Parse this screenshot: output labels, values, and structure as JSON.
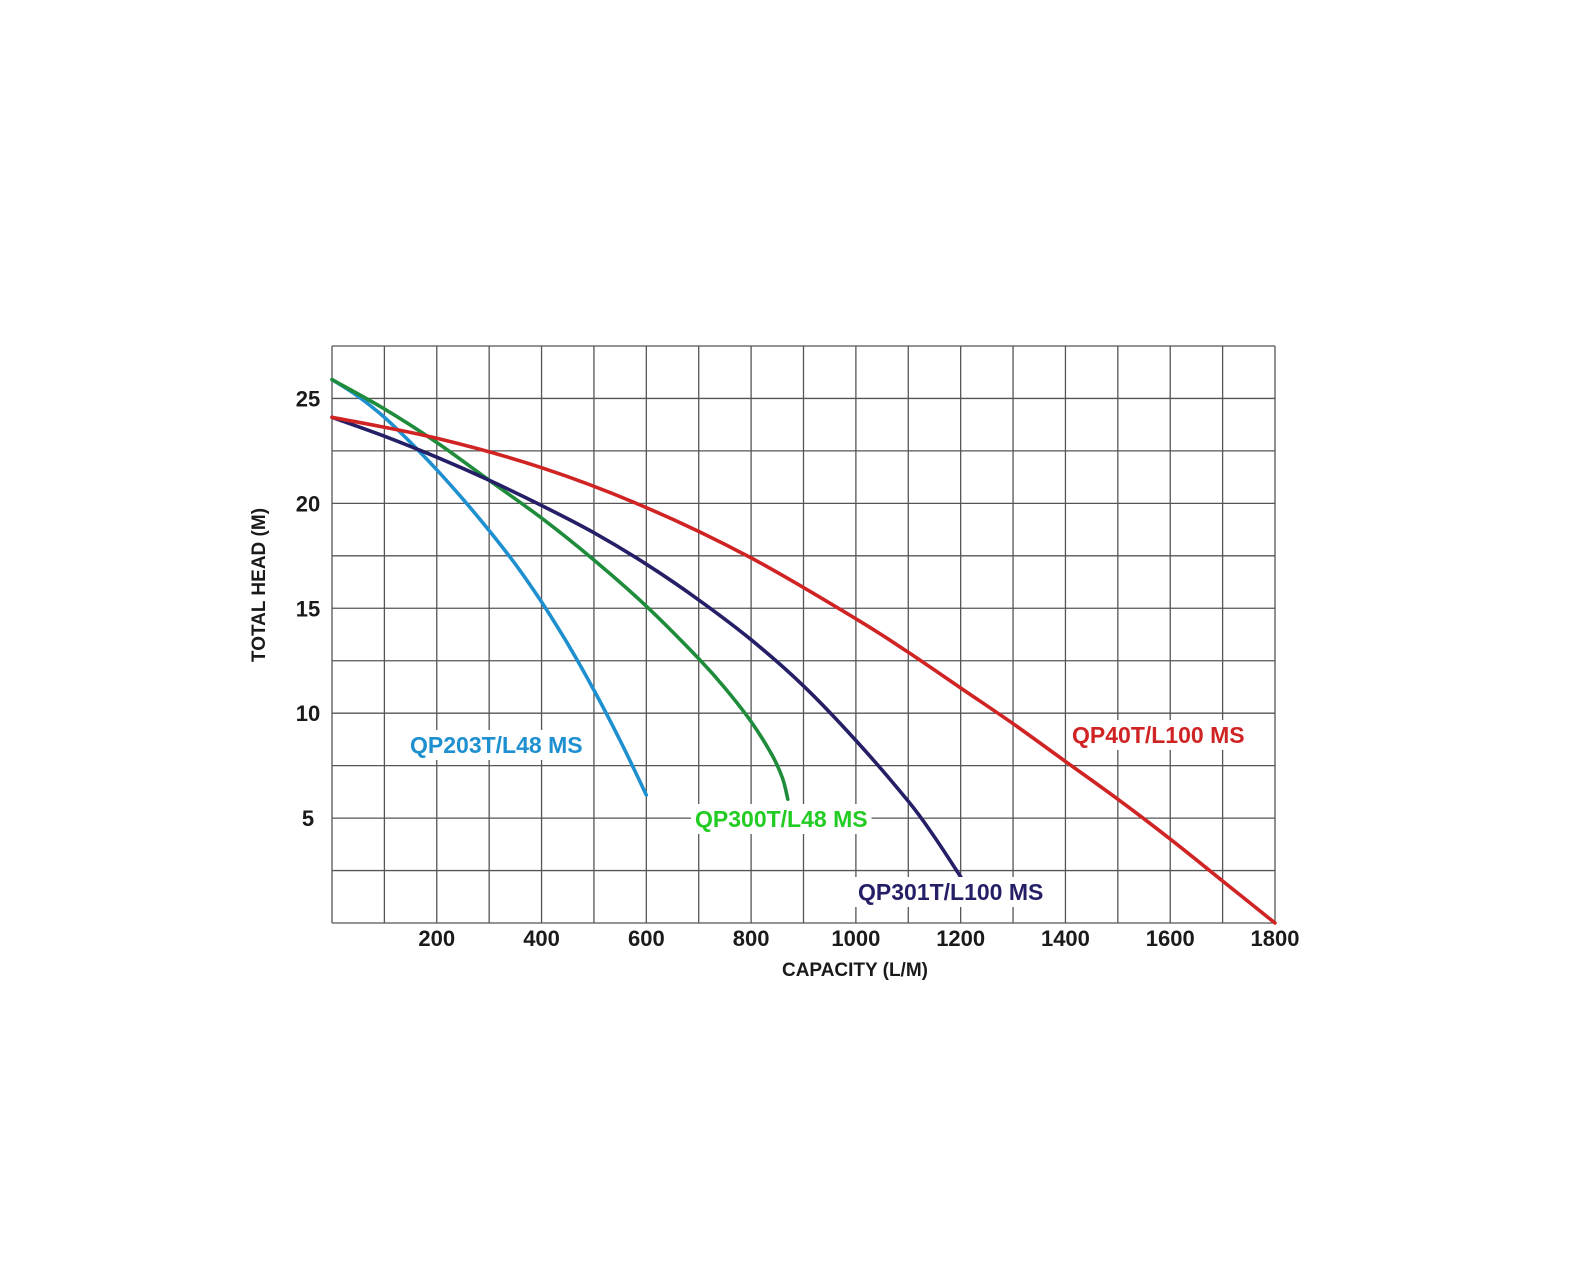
{
  "chart_data": {
    "type": "line",
    "title": "",
    "xlabel": "CAPACITY (L/M)",
    "ylabel": "TOTAL HEAD (M)",
    "xlim": [
      0,
      1800
    ],
    "ylim": [
      0,
      27.5
    ],
    "grid": true,
    "x_grid_step": 100,
    "y_grid_step": 2.5,
    "x_ticks": [
      200,
      400,
      600,
      800,
      1000,
      1200,
      1400,
      1600,
      1800
    ],
    "x_tick_labels": [
      "200",
      "400",
      "600",
      "800",
      "1000",
      "1200",
      "1400",
      "1600",
      "1800"
    ],
    "y_ticks": [
      5,
      10,
      15,
      20,
      25
    ],
    "y_tick_labels": [
      "5",
      "10",
      "15",
      "20",
      "25"
    ],
    "series": [
      {
        "name": "QP203T/L48 MS",
        "color": "#1e90d0",
        "x": [
          0,
          50,
          100,
          150,
          200,
          250,
          300,
          350,
          400,
          450,
          500,
          550,
          600
        ],
        "y": [
          25.9,
          25.1,
          24.1,
          22.9,
          21.6,
          20.2,
          18.7,
          17.1,
          15.3,
          13.3,
          11.1,
          8.7,
          6.1
        ]
      },
      {
        "name": "QP300T/L48 MS",
        "color": "#1f8c3c",
        "x": [
          0,
          100,
          200,
          300,
          400,
          500,
          600,
          700,
          750,
          800,
          840,
          860,
          870
        ],
        "y": [
          25.9,
          24.5,
          22.9,
          21.1,
          19.3,
          17.3,
          15.1,
          12.6,
          11.2,
          9.6,
          8.0,
          6.9,
          5.9
        ]
      },
      {
        "name": "QP301T/L100 MS",
        "color": "#241f66",
        "x": [
          0,
          100,
          200,
          300,
          400,
          500,
          600,
          700,
          800,
          900,
          1000,
          1100,
          1150,
          1200
        ],
        "y": [
          24.1,
          23.2,
          22.2,
          21.1,
          19.9,
          18.6,
          17.1,
          15.4,
          13.5,
          11.3,
          8.7,
          5.8,
          4.1,
          2.2
        ]
      },
      {
        "name": "QP40T/L100 MS",
        "color": "#d02424",
        "x": [
          0,
          200,
          400,
          600,
          800,
          1000,
          1100,
          1200,
          1300,
          1400,
          1500,
          1600,
          1700,
          1800
        ],
        "y": [
          24.1,
          23.1,
          21.7,
          19.8,
          17.4,
          14.5,
          12.9,
          11.2,
          9.5,
          7.7,
          5.9,
          4.0,
          2.0,
          0
        ]
      }
    ]
  }
}
